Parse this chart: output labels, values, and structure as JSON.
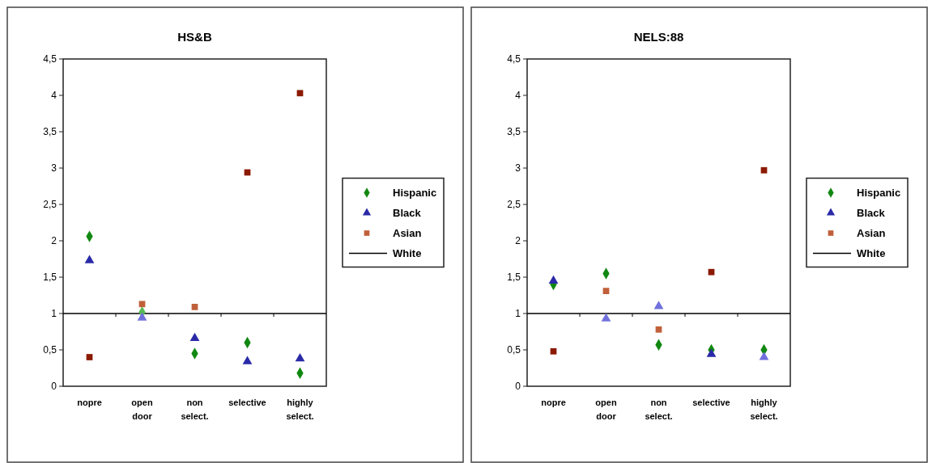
{
  "chart_data": [
    {
      "type": "scatter",
      "title": "HS&B",
      "categories": [
        "nopre",
        "open door",
        "non select.",
        "selective",
        "highly select."
      ],
      "ylim": [
        0,
        4.5
      ],
      "yticks": [
        0,
        {
          "value": 0.5,
          "label": "0,5"
        },
        1,
        {
          "value": 1.5,
          "label": "1,5"
        },
        2,
        {
          "value": 2.5,
          "label": "2,5"
        },
        3,
        {
          "value": 3.5,
          "label": "3,5"
        },
        4,
        {
          "value": 4.5,
          "label": "4,5"
        }
      ],
      "grid": false,
      "legend": "right",
      "series": [
        {
          "name": "Hispanic",
          "marker": "diamond",
          "color": "#118811",
          "colors": [
            "#118811",
            "#55bb55",
            "#118811",
            "#118811",
            "#118811"
          ],
          "values": [
            2.06,
            1.02,
            0.45,
            0.6,
            0.18
          ]
        },
        {
          "name": "Black",
          "marker": "triangle",
          "color": "#2a2aa8",
          "colors": [
            "#2a2aa8",
            "#7070dd",
            "#2a2aa8",
            "#2a2aa8",
            "#2a2aa8"
          ],
          "values": [
            1.73,
            0.94,
            0.66,
            0.34,
            0.38
          ]
        },
        {
          "name": "Asian",
          "marker": "square",
          "color": "#c0603a",
          "colors": [
            "#8b1a00",
            "#c0603a",
            "#c0603a",
            "#8b1a00",
            "#8b1a00"
          ],
          "values": [
            0.4,
            1.13,
            1.09,
            2.94,
            4.03
          ]
        }
      ],
      "ref_lines": [
        {
          "axis": "y",
          "value": 1,
          "label": "White",
          "color": "#000000"
        }
      ]
    },
    {
      "type": "scatter",
      "title": "NELS:88",
      "categories": [
        "nopre",
        "open door",
        "non select.",
        "selective",
        "highly select."
      ],
      "ylim": [
        0,
        4.5
      ],
      "yticks": [
        0,
        {
          "value": 0.5,
          "label": "0,5"
        },
        1,
        {
          "value": 1.5,
          "label": "1,5"
        },
        2,
        {
          "value": 2.5,
          "label": "2,5"
        },
        3,
        {
          "value": 3.5,
          "label": "3,5"
        },
        4,
        {
          "value": 4.5,
          "label": "4,5"
        }
      ],
      "grid": false,
      "legend": "right",
      "series": [
        {
          "name": "Hispanic",
          "marker": "diamond",
          "color": "#118811",
          "values": [
            1.4,
            1.55,
            0.57,
            0.5,
            0.5
          ]
        },
        {
          "name": "Black",
          "marker": "triangle",
          "color": "#2a2aa8",
          "colors": [
            "#2a2aa8",
            "#7070dd",
            "#7070dd",
            "#2a2aa8",
            "#7070dd"
          ],
          "values": [
            1.45,
            0.93,
            1.1,
            0.44,
            0.4
          ]
        },
        {
          "name": "Asian",
          "marker": "square",
          "color": "#c0603a",
          "colors": [
            "#8b1a00",
            "#c0603a",
            "#c0603a",
            "#8b1a00",
            "#8b1a00"
          ],
          "values": [
            0.48,
            1.31,
            0.78,
            1.57,
            2.97
          ]
        }
      ],
      "ref_lines": [
        {
          "axis": "y",
          "value": 1,
          "label": "White",
          "color": "#000000"
        }
      ]
    }
  ]
}
